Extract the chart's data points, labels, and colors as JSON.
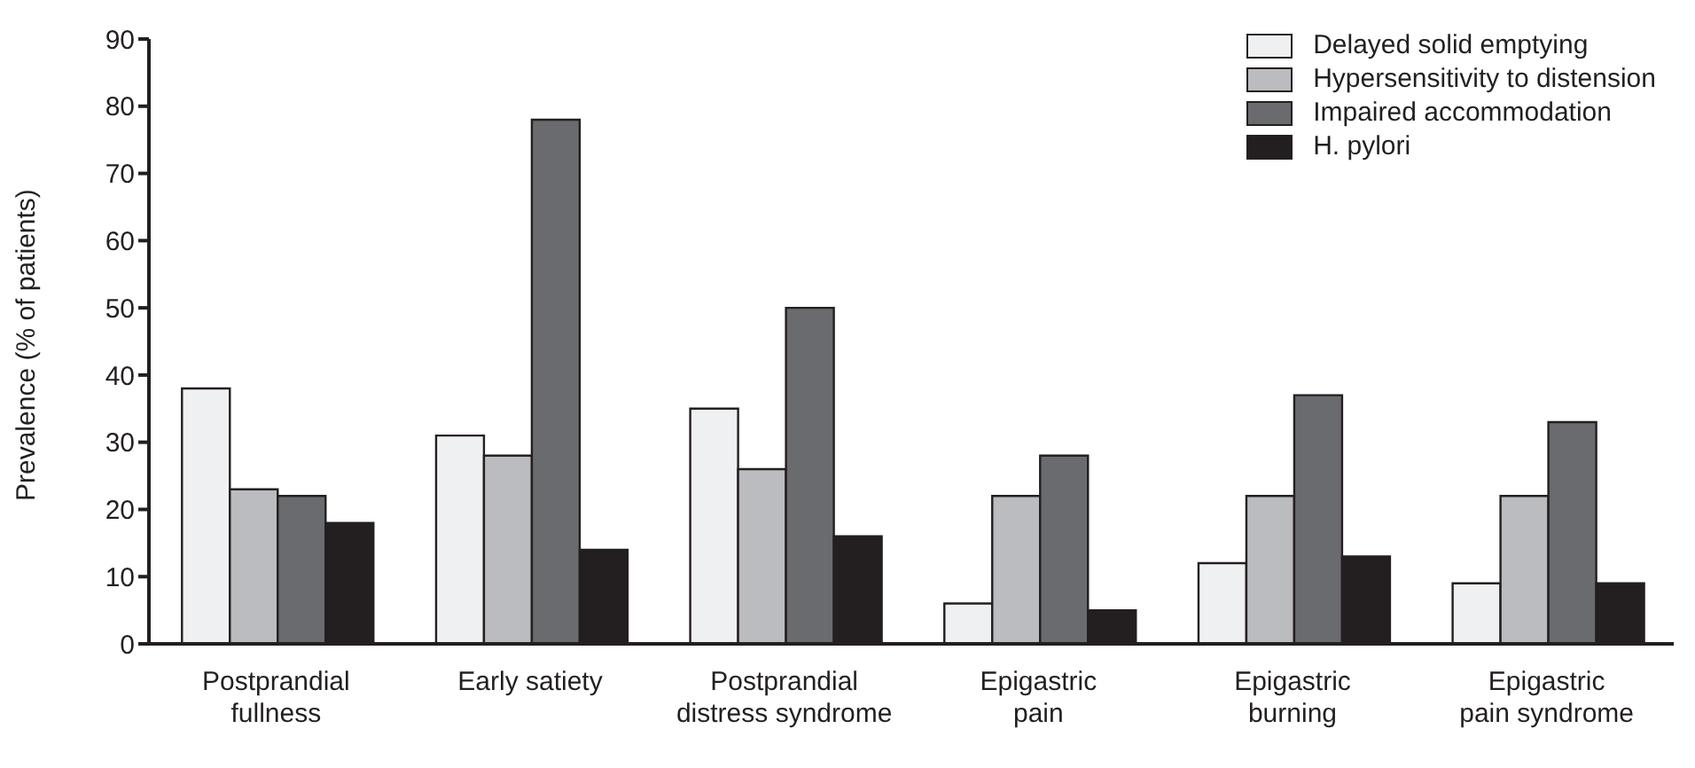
{
  "chart_data": {
    "type": "bar",
    "ylabel": "Prevalence (% of patients)",
    "categories": [
      "Postprandial fullness",
      "Early satiety",
      "Postprandial distress syndrome",
      "Epigastric pain",
      "Epigastric burning",
      "Epigastric pain syndrome"
    ],
    "series": [
      {
        "name": "Delayed solid emptying",
        "color": "#eff0f2",
        "values": [
          38,
          31,
          35,
          6,
          12,
          9
        ]
      },
      {
        "name": "Hypersensitivity to distension",
        "color": "#bbbcc0",
        "values": [
          23,
          28,
          26,
          22,
          22,
          22
        ]
      },
      {
        "name": "Impaired accommodation",
        "color": "#6a6b6f",
        "values": [
          22,
          78,
          50,
          28,
          37,
          33
        ]
      },
      {
        "name": "H. pylori",
        "color": "#231f20",
        "values": [
          18,
          14,
          16,
          5,
          13,
          9
        ]
      }
    ],
    "ylim": [
      0,
      90
    ],
    "yticks": [
      0,
      10,
      20,
      30,
      40,
      50,
      60,
      70,
      80,
      90
    ],
    "grid": false,
    "legend": "top right"
  }
}
